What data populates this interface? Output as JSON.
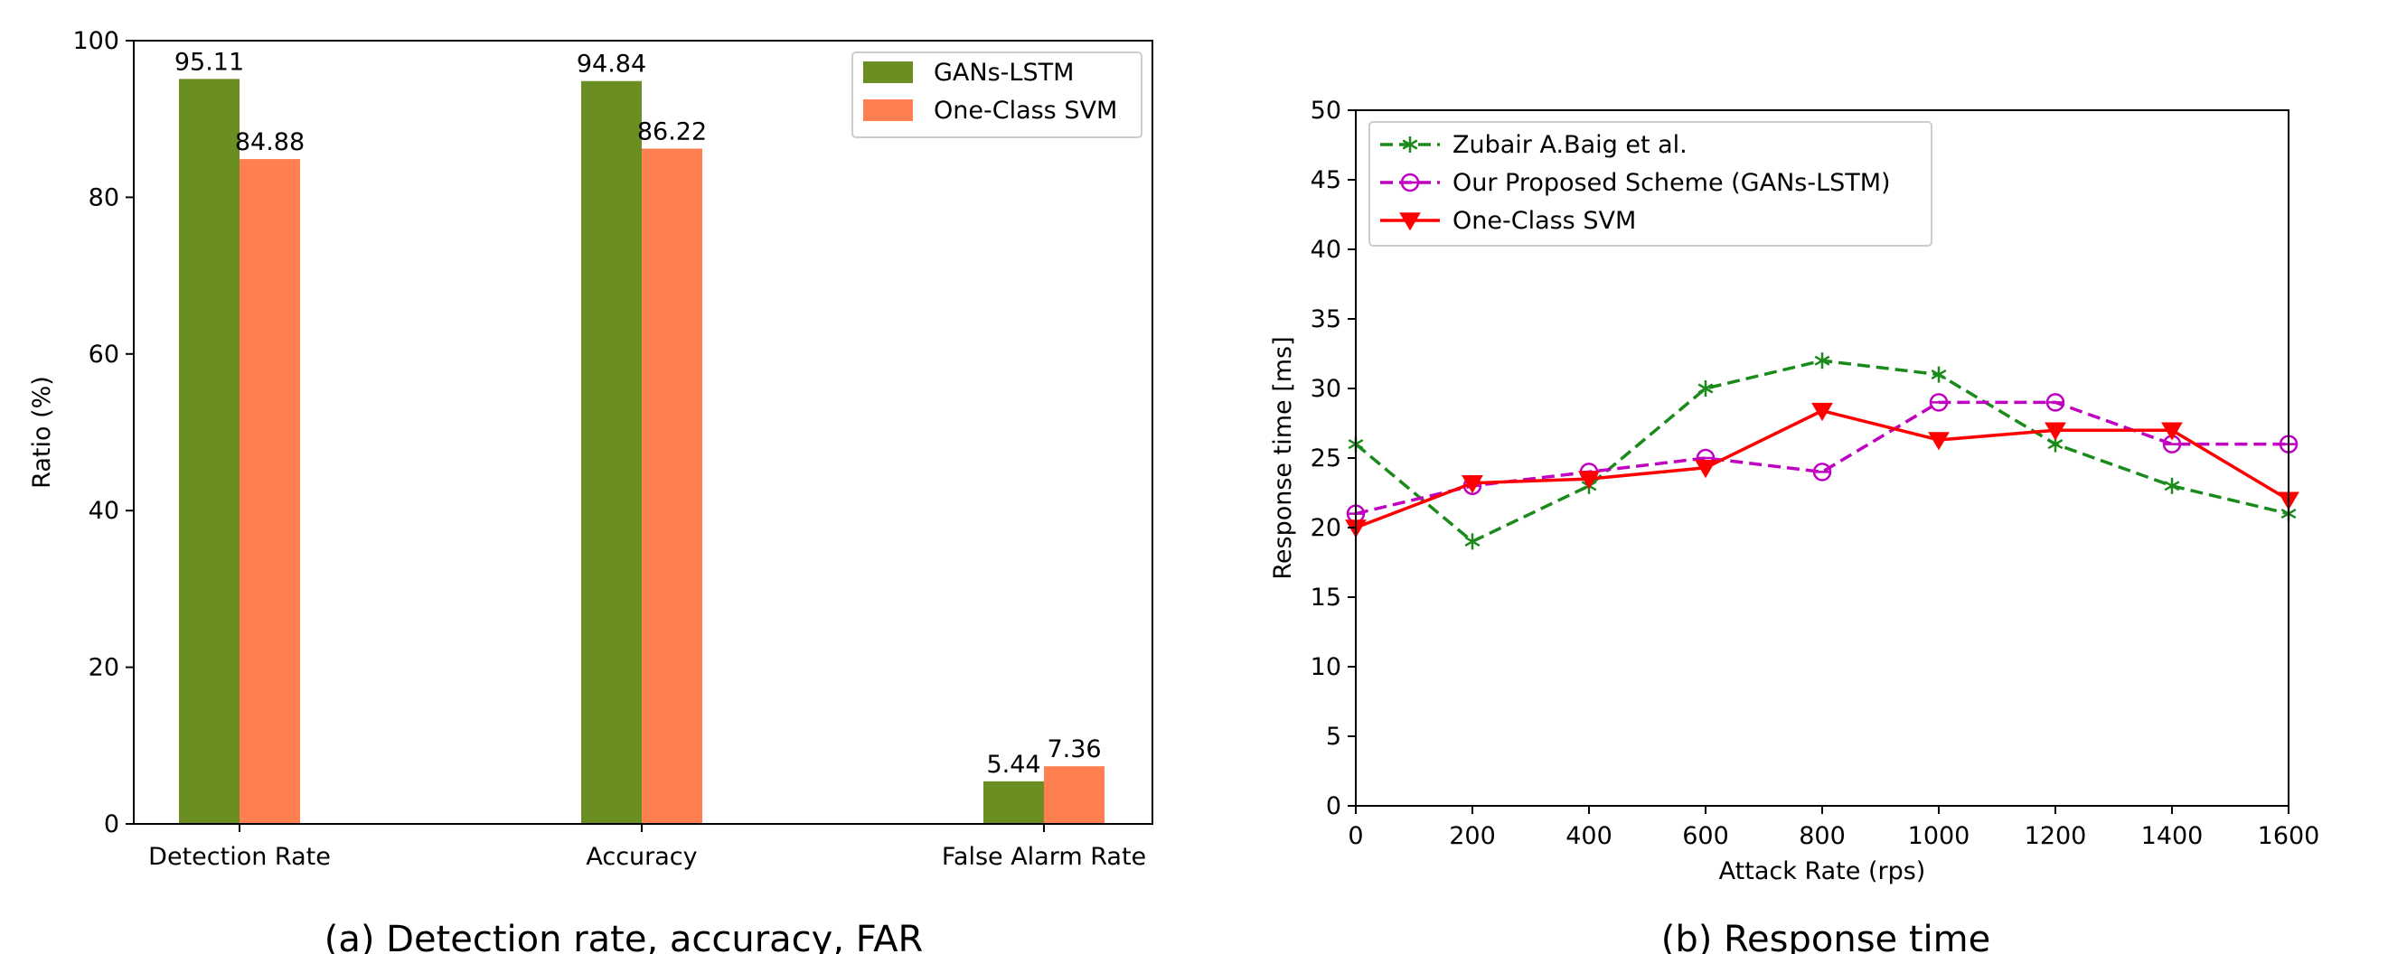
{
  "chart_data": [
    {
      "type": "bar",
      "caption": "(a) Detection rate, accuracy, FAR",
      "categories": [
        "Detection Rate",
        "Accuracy",
        "False Alarm Rate"
      ],
      "series": [
        {
          "name": "GANs-LSTM",
          "color": "#6b8e23",
          "values": [
            95.11,
            94.84,
            5.44
          ],
          "labels": [
            "95.11",
            "94.84",
            "5.44"
          ]
        },
        {
          "name": "One-Class SVM",
          "color": "#ff7f50",
          "values": [
            84.88,
            86.22,
            7.36
          ],
          "labels": [
            "84.88",
            "86.22",
            "7.36"
          ]
        }
      ],
      "ylabel": "Ratio (%)",
      "ylim": [
        0,
        100
      ],
      "yticks": [
        0,
        20,
        40,
        60,
        80,
        100
      ],
      "legend": "top-right",
      "grid": false
    },
    {
      "type": "line",
      "caption": "(b) Response time",
      "xlabel": "Attack Rate (rps)",
      "ylabel": "Response time [ms]",
      "x": [
        0,
        200,
        400,
        600,
        800,
        1000,
        1200,
        1400,
        1600
      ],
      "xlim": [
        0,
        1600
      ],
      "ylim": [
        0,
        50
      ],
      "xticks": [
        0,
        200,
        400,
        600,
        800,
        1000,
        1200,
        1400,
        1600
      ],
      "yticks": [
        0,
        5,
        10,
        15,
        20,
        25,
        30,
        35,
        40,
        45,
        50
      ],
      "series": [
        {
          "name": "Zubair A.Baig et al.",
          "color": "#1a8a1a",
          "style": "dashed",
          "marker": "asterisk",
          "values": [
            26,
            19,
            23,
            30,
            32,
            31,
            26,
            23,
            21
          ]
        },
        {
          "name": "Our Proposed Scheme (GANs-LSTM)",
          "color": "#c000c0",
          "style": "dashed",
          "marker": "open-circle",
          "values": [
            21,
            23,
            24,
            25,
            24,
            29,
            29,
            26,
            26
          ]
        },
        {
          "name": "One-Class SVM",
          "color": "#ff0000",
          "style": "solid",
          "marker": "down-triangle",
          "values": [
            20,
            23.2,
            23.5,
            24.3,
            28.4,
            26.3,
            27,
            27,
            22
          ]
        }
      ],
      "legend": "top-left",
      "grid": false
    }
  ]
}
